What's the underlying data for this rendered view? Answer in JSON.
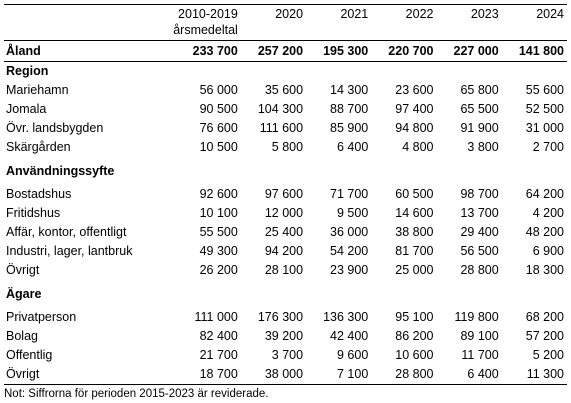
{
  "header": {
    "col_avg_line1": "2010-2019",
    "col_avg_line2": "årsmedeltal",
    "years": [
      "2020",
      "2021",
      "2022",
      "2023",
      "2024"
    ]
  },
  "total": {
    "label": "Åland",
    "values": [
      "233 700",
      "257 200",
      "195 300",
      "220 700",
      "227 000",
      "141 800"
    ]
  },
  "sections": {
    "region": {
      "title": "Region",
      "rows": [
        {
          "label": "Mariehamn",
          "values": [
            "56 000",
            "35 600",
            "14 300",
            "23 600",
            "65 800",
            "55 600"
          ]
        },
        {
          "label": "Jomala",
          "values": [
            "90 500",
            "104 300",
            "88 700",
            "97 400",
            "65 500",
            "52 500"
          ]
        },
        {
          "label": "Övr. landsbygden",
          "values": [
            "76 600",
            "111 600",
            "85 900",
            "94 800",
            "91 900",
            "31 000"
          ]
        },
        {
          "label": "Skärgården",
          "values": [
            "10 500",
            "5 800",
            "6 400",
            "4 800",
            "3 800",
            "2 700"
          ]
        }
      ]
    },
    "use": {
      "title": "Användningssyfte",
      "rows": [
        {
          "label": "Bostadshus",
          "values": [
            "92 600",
            "97 600",
            "71 700",
            "60 500",
            "98 700",
            "64 200"
          ]
        },
        {
          "label": "Fritidshus",
          "values": [
            "10 100",
            "12 000",
            "9 500",
            "14 600",
            "13 700",
            "4 200"
          ]
        },
        {
          "label": "Affär, kontor, offentligt",
          "values": [
            "55 500",
            "25 400",
            "36 000",
            "38 800",
            "29 400",
            "48 200"
          ]
        },
        {
          "label": "Industri, lager, lantbruk",
          "values": [
            "49 300",
            "94 200",
            "54 200",
            "81 700",
            "56 500",
            "6 900"
          ]
        },
        {
          "label": "Övrigt",
          "values": [
            "26 200",
            "28 100",
            "23 900",
            "25 000",
            "28 800",
            "18 300"
          ]
        }
      ]
    },
    "owner": {
      "title": "Ägare",
      "rows": [
        {
          "label": "Privatperson",
          "values": [
            "111 000",
            "176 300",
            "136 300",
            "95 100",
            "119 800",
            "68 200"
          ]
        },
        {
          "label": "Bolag",
          "values": [
            "82 400",
            "39 200",
            "42 400",
            "86 200",
            "89 100",
            "57 200"
          ]
        },
        {
          "label": "Offentlig",
          "values": [
            "21 700",
            "3 700",
            "9 600",
            "10 600",
            "11 700",
            "5 200"
          ]
        },
        {
          "label": "Övrigt",
          "values": [
            "18 700",
            "38 000",
            "7 100",
            "28 800",
            "6 400",
            "11 300"
          ]
        }
      ]
    }
  },
  "note": "Not: Siffrorna för perioden 2015-2023 är reviderade."
}
